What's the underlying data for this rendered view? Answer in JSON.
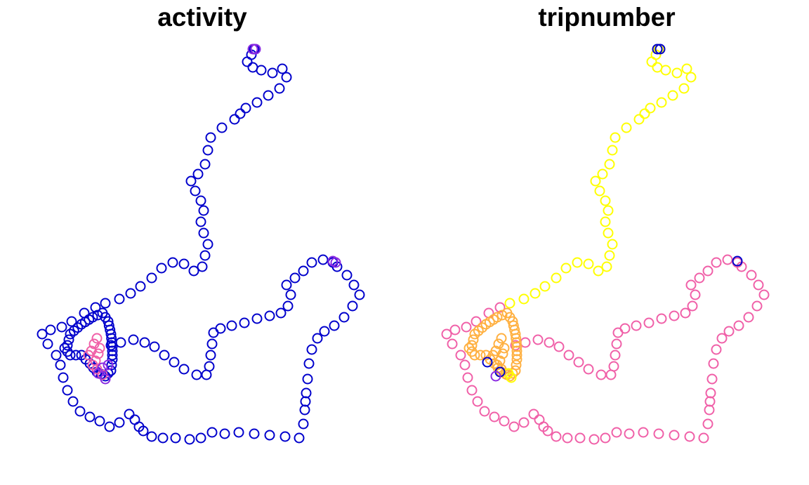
{
  "chart_data": [
    {
      "type": "scatter",
      "title": "activity",
      "xlabel": "",
      "ylabel": "",
      "legend": "none",
      "grid": false,
      "colors": {
        "base": "#0000cc",
        "mid": "#8b2be2",
        "high": "#f060a8"
      }
    },
    {
      "type": "scatter",
      "title": "tripnumber",
      "xlabel": "",
      "ylabel": "",
      "legend": "none",
      "grid": false,
      "colors": {
        "trip_a": "#ffff00",
        "trip_b": "#f060a8",
        "trip_c": "#ffb040",
        "trip_d": "#0000cc",
        "trip_e": "#8b2be2"
      }
    }
  ]
}
